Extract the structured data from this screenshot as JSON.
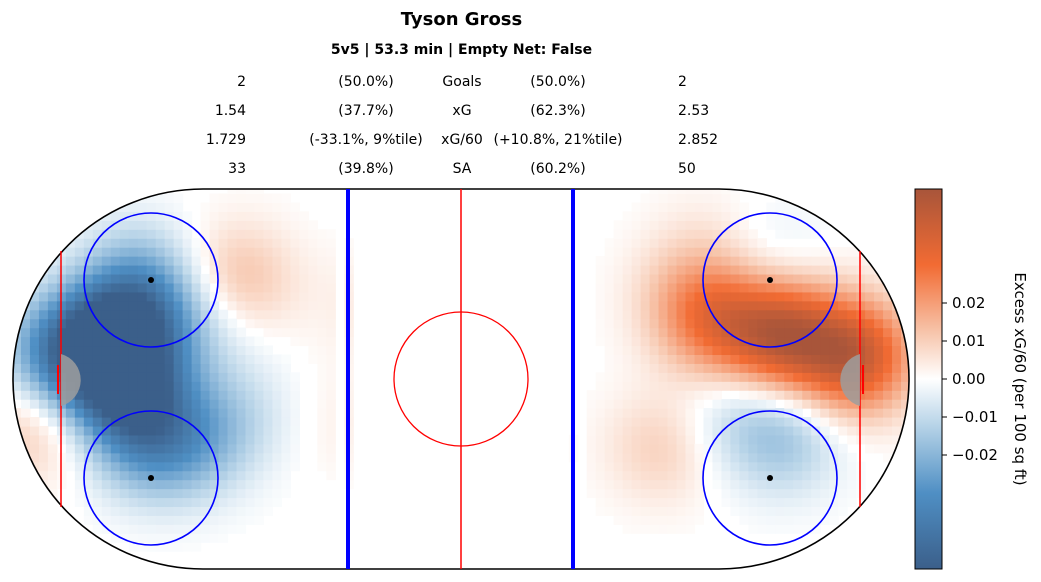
{
  "chart_data": {
    "type": "heatmap",
    "title": "Tyson Gross",
    "subtitle": "5v5 | 53.3 min | Empty Net: False",
    "stats_rows": [
      {
        "label": "Goals",
        "left_value": "2",
        "left_pct": "(50.0%)",
        "right_pct": "(50.0%)",
        "right_value": "2"
      },
      {
        "label": "xG",
        "left_value": "1.54",
        "left_pct": "(37.7%)",
        "right_pct": "(62.3%)",
        "right_value": "2.53"
      },
      {
        "label": "xG/60",
        "left_value": "1.729",
        "left_pct": "(-33.1%, 9%tile)",
        "right_pct": "(+10.8%, 21%tile)",
        "right_value": "2.852"
      },
      {
        "label": "SA",
        "left_value": "33",
        "left_pct": "(39.8%)",
        "right_pct": "(60.2%)",
        "right_value": "50"
      }
    ],
    "colorbar": {
      "label": "Excess xG/60 (per 100 sq ft)",
      "ticks": [
        "0.02",
        "0.01",
        "0.00",
        "−0.01",
        "−0.02"
      ],
      "tick_values": [
        0.02,
        0.01,
        0.0,
        -0.01,
        -0.02
      ],
      "range": [
        -0.05,
        0.05
      ],
      "low_color": "#3b5f8a",
      "mid_color": "#ffffff",
      "high_color": "#a8553a"
    },
    "rink_colors": {
      "blue_line": "#0000ff",
      "red_line": "#ff0000",
      "boards": "#000000"
    },
    "blobs": [
      {
        "x": -82,
        "y": 7,
        "v": -0.045
      },
      {
        "x": -74,
        "y": -2,
        "v": -0.04
      },
      {
        "x": -72,
        "y": 14,
        "v": -0.03
      },
      {
        "x": -70,
        "y": -14,
        "v": -0.02
      },
      {
        "x": -60,
        "y": -14,
        "v": -0.015
      },
      {
        "x": -50,
        "y": -8,
        "v": -0.008
      },
      {
        "x": -50,
        "y": 22,
        "v": 0.014
      },
      {
        "x": -57,
        "y": 12,
        "v": -0.008
      },
      {
        "x": -72,
        "y": 24,
        "v": -0.012
      },
      {
        "x": -95,
        "y": -10,
        "v": 0.012
      },
      {
        "x": -92,
        "y": 5,
        "v": -0.015
      },
      {
        "x": -20,
        "y": 16,
        "v": 0.004
      },
      {
        "x": -25,
        "y": -10,
        "v": 0.003
      },
      {
        "x": 57,
        "y": 13,
        "v": 0.025
      },
      {
        "x": 72,
        "y": 10,
        "v": 0.04
      },
      {
        "x": 88,
        "y": 5,
        "v": 0.04
      },
      {
        "x": 72,
        "y": -13,
        "v": -0.015
      },
      {
        "x": 60,
        "y": -8,
        "v": -0.008
      },
      {
        "x": 45,
        "y": -15,
        "v": 0.01
      },
      {
        "x": 50,
        "y": 19,
        "v": 0.008
      },
      {
        "x": 70,
        "y": 26,
        "v": -0.006
      },
      {
        "x": 55,
        "y": 30,
        "v": 0.004
      }
    ]
  }
}
